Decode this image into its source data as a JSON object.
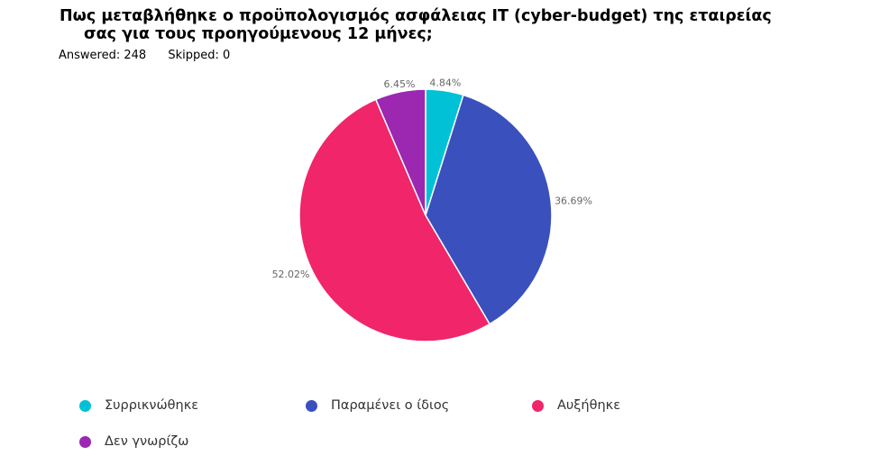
{
  "question": {
    "title_line1": "Πως μεταβλήθηκε ο προϋπολογισμός ασφάλειας IT (cyber-budget) της εταιρείας",
    "title_line2": "σας  για τους προηγούμενους 12 μήνες;",
    "answered_label": "Answered: 248",
    "skipped_label": "Skipped: 0"
  },
  "chart_data": {
    "type": "pie",
    "labels": [
      "Συρρικνώθηκε",
      "Παραμένει ο ίδιος",
      "Αυξήθηκε",
      "Δεν γνωρίζω"
    ],
    "values": [
      4.84,
      36.69,
      52.02,
      6.45
    ],
    "value_labels": [
      "4.84%",
      "36.69%",
      "52.02%",
      "6.45%"
    ],
    "colors": [
      "#00c1d5",
      "#3a50bd",
      "#f0256a",
      "#9c27b0"
    ],
    "legend_position": "bottom",
    "start": "top",
    "direction": "clockwise"
  }
}
